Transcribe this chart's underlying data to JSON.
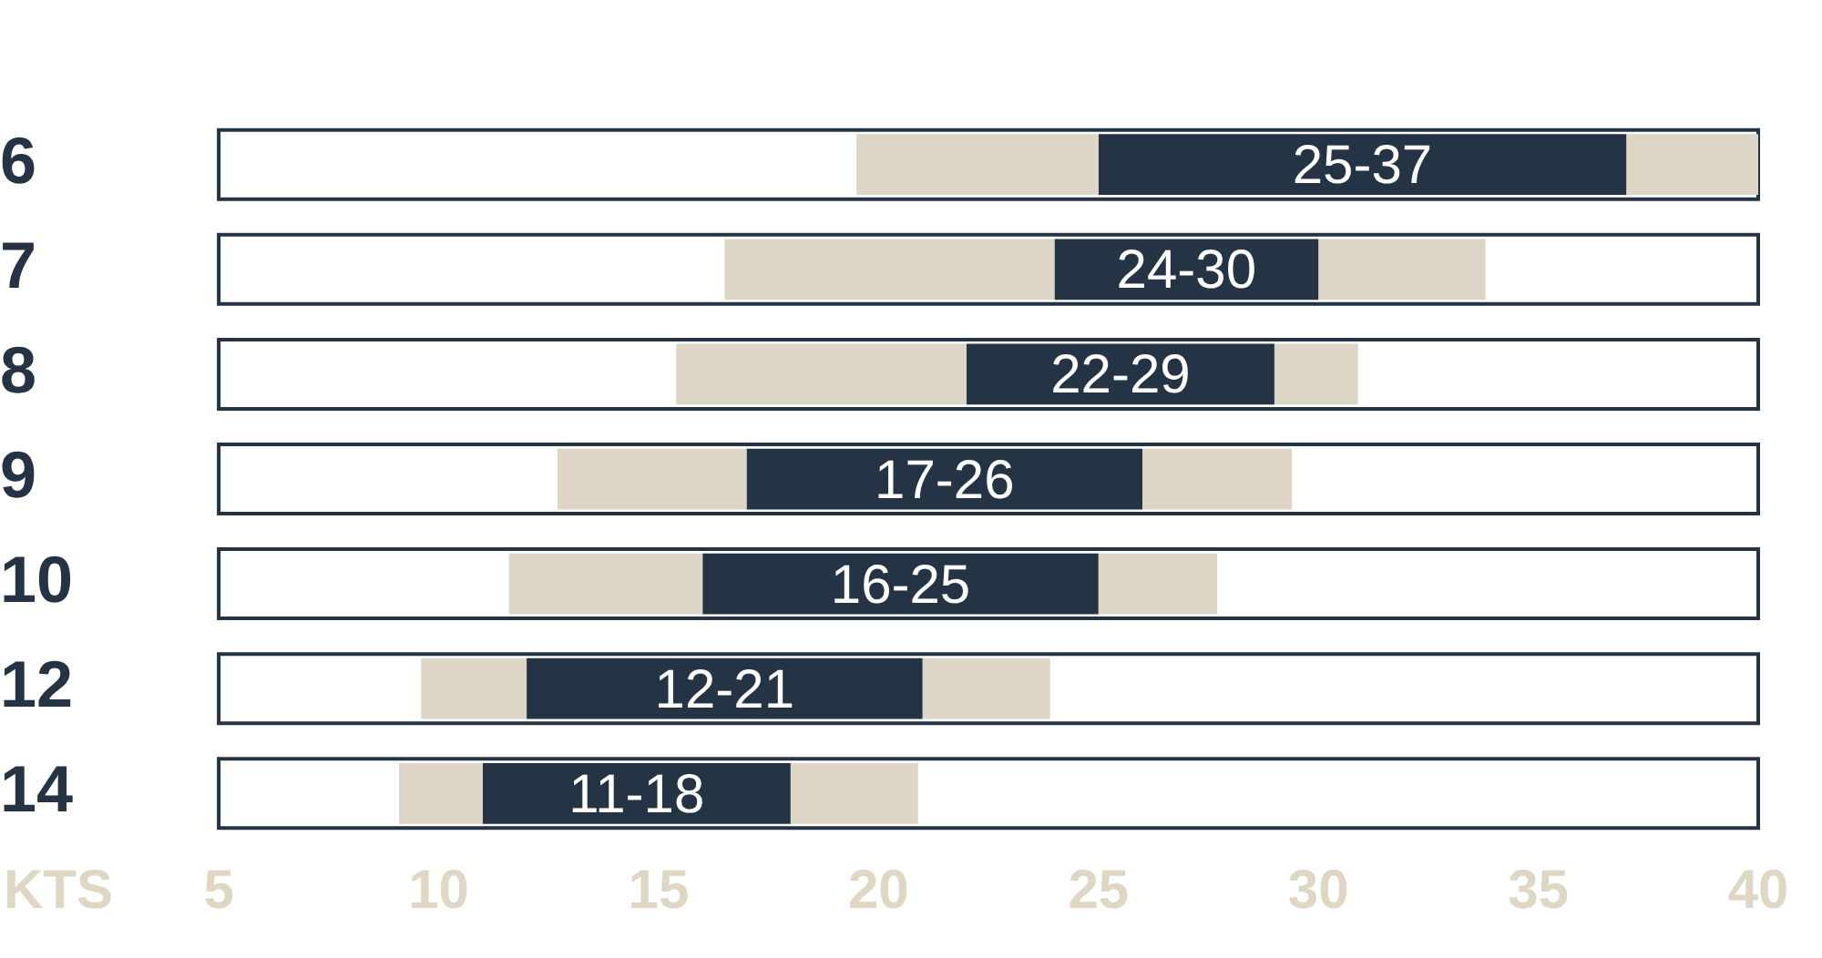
{
  "chart_data": {
    "type": "bar",
    "orientation": "horizontal",
    "xlabel": "KTS",
    "categories": [
      "6",
      "7",
      "8",
      "9",
      "10",
      "12",
      "14"
    ],
    "xlim": [
      5,
      40
    ],
    "xticks": [
      5,
      10,
      15,
      20,
      25,
      30,
      35,
      40
    ],
    "grid": false,
    "legend": false,
    "series": [
      {
        "color": "#ddd5c6",
        "base": [
          19.5,
          16.5,
          15.4,
          12.7,
          11.6,
          9.6,
          9.1
        ],
        "values": [
          5.5,
          7.5,
          6.6,
          4.3,
          4.4,
          2.4,
          1.9
        ]
      },
      {
        "color": "#253444",
        "base": [
          25,
          24,
          22,
          17,
          16,
          12,
          11
        ],
        "values": [
          12,
          6,
          7,
          9,
          9,
          9,
          7
        ],
        "value_labels": [
          "25-37",
          "24-30",
          "22-29",
          "17-26",
          "16-25",
          "12-21",
          "11-18"
        ]
      },
      {
        "color": "#ddd5c6",
        "base": [
          37,
          30,
          29,
          26,
          25,
          21,
          18
        ],
        "values": [
          3,
          3.8,
          1.9,
          3.4,
          2.7,
          2.9,
          2.9
        ]
      }
    ]
  }
}
